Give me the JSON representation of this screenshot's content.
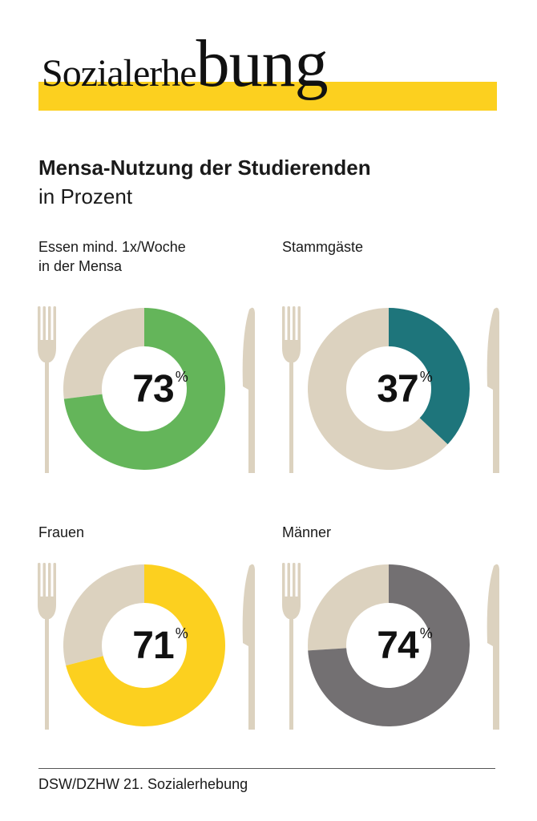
{
  "logo": {
    "part1": "Sozialerhe",
    "part2": "bung",
    "bar_color": "#fcd01f"
  },
  "title": "Mensa-Nutzung der Studierenden",
  "subtitle": "in Prozent",
  "source": "DSW/DZHW 21. Sozialerhebung",
  "colors": {
    "remainder": "#dcd2bf",
    "utensil": "#dcd2bf"
  },
  "chart_data": [
    {
      "type": "pie",
      "label": "Essen mind. 1x/Woche\nin der Mensa",
      "value": 73,
      "unit": "%",
      "color": "#64b55a"
    },
    {
      "type": "pie",
      "label": "Stammgäste",
      "value": 37,
      "unit": "%",
      "color": "#1e757b"
    },
    {
      "type": "pie",
      "label": "Frauen",
      "value": 71,
      "unit": "%",
      "color": "#fcd01f"
    },
    {
      "type": "pie",
      "label": "Männer",
      "value": 74,
      "unit": "%",
      "color": "#737072"
    }
  ]
}
